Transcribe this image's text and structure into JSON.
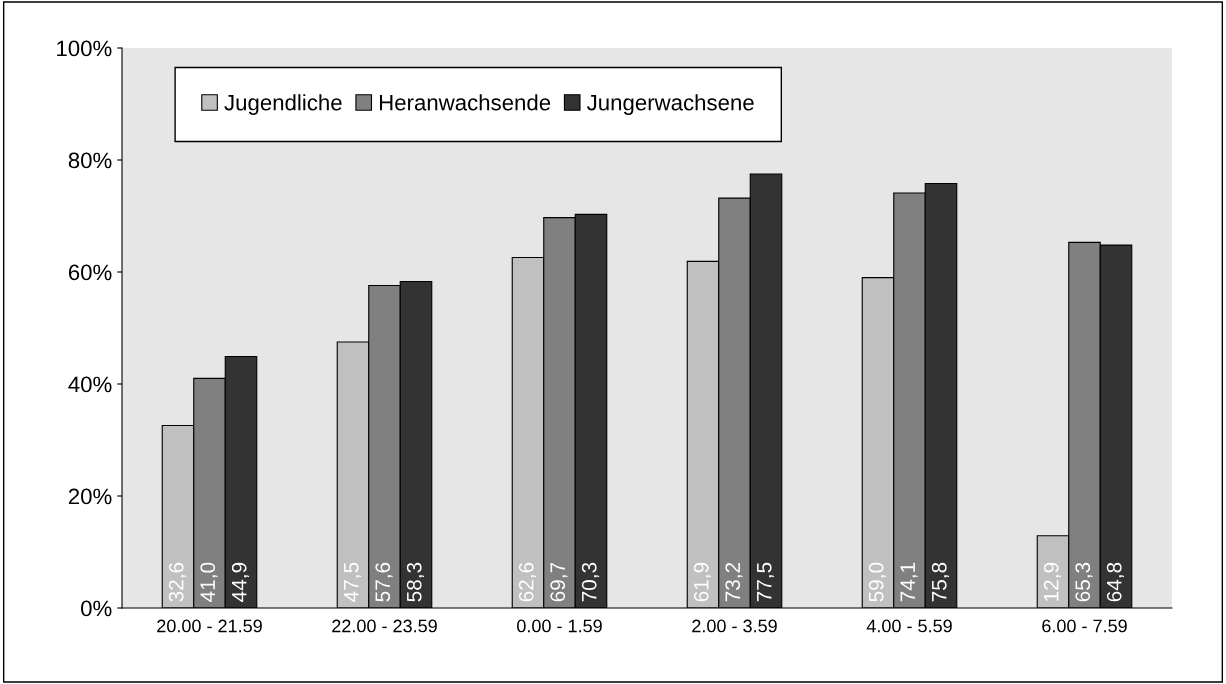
{
  "chart_data": {
    "type": "bar",
    "categories": [
      "20.00 - 21.59",
      "22.00 - 23.59",
      "0.00 - 1.59",
      "2.00 - 3.59",
      "4.00 - 5.59",
      "6.00 - 7.59"
    ],
    "series": [
      {
        "name": "Jugendliche",
        "color": "#c0c0c0",
        "values": [
          32.6,
          47.5,
          62.6,
          61.9,
          59.0,
          12.9
        ],
        "value_labels": [
          "32,6",
          "47,5",
          "62,6",
          "61,9",
          "59,0",
          "12,9"
        ]
      },
      {
        "name": "Heranwachsende",
        "color": "#808080",
        "values": [
          41.0,
          57.6,
          69.7,
          73.2,
          74.1,
          65.3
        ],
        "value_labels": [
          "41,0",
          "57,6",
          "69,7",
          "73,2",
          "74,1",
          "65,3"
        ]
      },
      {
        "name": "Jungerwachsene",
        "color": "#333333",
        "values": [
          44.9,
          58.3,
          70.3,
          77.5,
          75.8,
          64.8
        ],
        "value_labels": [
          "44,9",
          "58,3",
          "70,3",
          "77,5",
          "75,8",
          "64,8"
        ]
      }
    ],
    "ylim": [
      0,
      100
    ],
    "yticks": [
      {
        "value": 0,
        "label": "0%"
      },
      {
        "value": 20,
        "label": "20%"
      },
      {
        "value": 40,
        "label": "40%"
      },
      {
        "value": 60,
        "label": "60%"
      },
      {
        "value": 80,
        "label": "80%"
      },
      {
        "value": 100,
        "label": "100%"
      }
    ],
    "grid": false,
    "legend": "top left"
  }
}
